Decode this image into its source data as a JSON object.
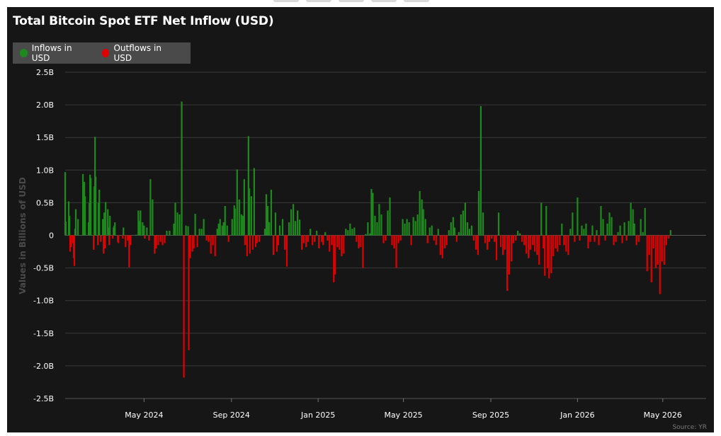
{
  "chart_data": {
    "type": "bar",
    "title": "Total Bitcoin Spot ETF Net Inflow (USD)",
    "ylabel": "Values in Billions of USD",
    "ylim": [
      -2.5,
      2.5
    ],
    "yticks": [
      2.5,
      2.0,
      1.5,
      1.0,
      0.5,
      0,
      -0.5,
      -1.0,
      -1.5,
      -2.0,
      -2.5
    ],
    "ytick_labels": [
      "2.5B",
      "2.0B",
      "1.5B",
      "1.0B",
      "0.5B",
      "0",
      "-0.5B",
      "-1.0B",
      "-1.5B",
      "-2.0B",
      "-2.5B"
    ],
    "x_range": [
      "2024-01-11",
      "2026-07-01"
    ],
    "xticks": [
      {
        "date": "2024-05-01",
        "label": "May 2024"
      },
      {
        "date": "2024-09-01",
        "label": "Sep 2024"
      },
      {
        "date": "2025-01-01",
        "label": "Jan 2025"
      },
      {
        "date": "2025-05-01",
        "label": "May 2025"
      },
      {
        "date": "2025-09-01",
        "label": "Sep 2025"
      },
      {
        "date": "2026-01-01",
        "label": "Jan 2026"
      },
      {
        "date": "2026-05-01",
        "label": "May 2026"
      }
    ],
    "grid": true,
    "legend_position": "top-left",
    "colors": {
      "inflow": "#1e8a1e",
      "outflow": "#e00000"
    },
    "series": [
      {
        "name": "Inflows in USD",
        "color": "#1e8a1e"
      },
      {
        "name": "Outflows in USD",
        "color": "#e00000"
      }
    ],
    "data": [
      [
        "2024-01-11",
        0.97
      ],
      [
        "2024-01-12",
        0.21
      ],
      [
        "2024-01-16",
        0.52
      ],
      [
        "2024-01-17",
        0.3
      ],
      [
        "2024-01-18",
        -0.25
      ],
      [
        "2024-01-19",
        -0.18
      ],
      [
        "2024-01-22",
        -0.12
      ],
      [
        "2024-01-23",
        -0.35
      ],
      [
        "2024-01-24",
        -0.47
      ],
      [
        "2024-01-25",
        0.1
      ],
      [
        "2024-01-26",
        0.4
      ],
      [
        "2024-01-29",
        0.25
      ],
      [
        "2024-02-05",
        0.94
      ],
      [
        "2024-02-06",
        0.42
      ],
      [
        "2024-02-07",
        0.82
      ],
      [
        "2024-02-08",
        0.6
      ],
      [
        "2024-02-13",
        0.2
      ],
      [
        "2024-02-14",
        0.5
      ],
      [
        "2024-02-15",
        0.93
      ],
      [
        "2024-02-16",
        0.88
      ],
      [
        "2024-02-20",
        -0.22
      ],
      [
        "2024-02-21",
        0.75
      ],
      [
        "2024-02-22",
        1.51
      ],
      [
        "2024-02-23",
        0.9
      ],
      [
        "2024-02-26",
        -0.15
      ],
      [
        "2024-02-27",
        0.5
      ],
      [
        "2024-02-28",
        0.7
      ],
      [
        "2024-03-01",
        -0.1
      ],
      [
        "2024-03-04",
        0.25
      ],
      [
        "2024-03-05",
        -0.28
      ],
      [
        "2024-03-06",
        0.35
      ],
      [
        "2024-03-07",
        -0.2
      ],
      [
        "2024-03-08",
        0.51
      ],
      [
        "2024-03-11",
        0.4
      ],
      [
        "2024-03-12",
        0.12
      ],
      [
        "2024-03-13",
        -0.15
      ],
      [
        "2024-03-14",
        0.3
      ],
      [
        "2024-03-18",
        -0.05
      ],
      [
        "2024-03-19",
        0.12
      ],
      [
        "2024-03-20",
        0.15
      ],
      [
        "2024-03-21",
        0.2
      ],
      [
        "2024-03-25",
        -0.1
      ],
      [
        "2024-03-26",
        -0.12
      ],
      [
        "2024-04-01",
        -0.05
      ],
      [
        "2024-04-02",
        0.12
      ],
      [
        "2024-04-05",
        -0.18
      ],
      [
        "2024-04-08",
        -0.08
      ],
      [
        "2024-04-10",
        -0.49
      ],
      [
        "2024-04-12",
        -0.15
      ],
      [
        "2024-04-20",
        0.01
      ],
      [
        "2024-04-23",
        0.38
      ],
      [
        "2024-04-24",
        0.22
      ],
      [
        "2024-04-26",
        0.38
      ],
      [
        "2024-04-29",
        0.2
      ],
      [
        "2024-05-01",
        0.15
      ],
      [
        "2024-05-02",
        -0.05
      ],
      [
        "2024-05-05",
        0.12
      ],
      [
        "2024-05-08",
        -0.08
      ],
      [
        "2024-05-10",
        0.86
      ],
      [
        "2024-05-13",
        0.55
      ],
      [
        "2024-05-16",
        -0.28
      ],
      [
        "2024-05-18",
        -0.2
      ],
      [
        "2024-05-21",
        -0.15
      ],
      [
        "2024-05-24",
        -0.1
      ],
      [
        "2024-05-27",
        -0.15
      ],
      [
        "2024-05-30",
        -0.12
      ],
      [
        "2024-06-02",
        0.07
      ],
      [
        "2024-06-06",
        0.07
      ],
      [
        "2024-06-12",
        0.18
      ],
      [
        "2024-06-14",
        0.5
      ],
      [
        "2024-06-17",
        0.35
      ],
      [
        "2024-06-20",
        0.32
      ],
      [
        "2024-06-23",
        2.05
      ],
      [
        "2024-06-26",
        -2.18
      ],
      [
        "2024-06-29",
        0.15
      ],
      [
        "2024-07-02",
        0.14
      ],
      [
        "2024-07-03",
        -1.76
      ],
      [
        "2024-07-05",
        -0.35
      ],
      [
        "2024-07-08",
        -0.25
      ],
      [
        "2024-07-10",
        -0.2
      ],
      [
        "2024-07-12",
        0.33
      ],
      [
        "2024-07-15",
        -0.18
      ],
      [
        "2024-07-18",
        0.1
      ],
      [
        "2024-07-21",
        0.1
      ],
      [
        "2024-07-24",
        0.25
      ],
      [
        "2024-07-28",
        -0.08
      ],
      [
        "2024-07-31",
        -0.1
      ],
      [
        "2024-08-03",
        -0.28
      ],
      [
        "2024-08-06",
        -0.15
      ],
      [
        "2024-08-09",
        -0.32
      ],
      [
        "2024-08-12",
        0.1
      ],
      [
        "2024-08-14",
        0.18
      ],
      [
        "2024-08-16",
        0.25
      ],
      [
        "2024-08-19",
        0.15
      ],
      [
        "2024-08-21",
        0.2
      ],
      [
        "2024-08-23",
        0.45
      ],
      [
        "2024-08-26",
        0.15
      ],
      [
        "2024-08-28",
        -0.1
      ],
      [
        "2024-09-02",
        0.25
      ],
      [
        "2024-09-05",
        0.46
      ],
      [
        "2024-09-06",
        0.41
      ],
      [
        "2024-09-09",
        1.01
      ],
      [
        "2024-09-12",
        0.55
      ],
      [
        "2024-09-15",
        0.32
      ],
      [
        "2024-09-17",
        0.3
      ],
      [
        "2024-09-19",
        0.86
      ],
      [
        "2024-09-20",
        -0.15
      ],
      [
        "2024-09-23",
        -0.32
      ],
      [
        "2024-09-25",
        1.52
      ],
      [
        "2024-09-26",
        0.72
      ],
      [
        "2024-09-27",
        -0.28
      ],
      [
        "2024-09-29",
        0.6
      ],
      [
        "2024-10-01",
        -0.22
      ],
      [
        "2024-10-03",
        1.03
      ],
      [
        "2024-10-05",
        -0.18
      ],
      [
        "2024-10-07",
        -0.12
      ],
      [
        "2024-10-10",
        -0.1
      ],
      [
        "2024-10-18",
        0.1
      ],
      [
        "2024-10-20",
        0.63
      ],
      [
        "2024-10-22",
        0.45
      ],
      [
        "2024-10-24",
        0.2
      ],
      [
        "2024-10-27",
        0.7
      ],
      [
        "2024-10-30",
        -0.3
      ],
      [
        "2024-11-02",
        0.35
      ],
      [
        "2024-11-04",
        -0.25
      ],
      [
        "2024-11-06",
        -0.15
      ],
      [
        "2024-11-08",
        0.15
      ],
      [
        "2024-11-12",
        0.25
      ],
      [
        "2024-11-15",
        -0.22
      ],
      [
        "2024-11-18",
        -0.48
      ],
      [
        "2024-11-21",
        0.2
      ],
      [
        "2024-11-24",
        0.4
      ],
      [
        "2024-11-27",
        0.48
      ],
      [
        "2024-11-30",
        0.22
      ],
      [
        "2024-12-03",
        0.38
      ],
      [
        "2024-12-06",
        0.24
      ],
      [
        "2024-12-09",
        -0.22
      ],
      [
        "2024-12-12",
        -0.12
      ],
      [
        "2024-12-15",
        -0.18
      ],
      [
        "2024-12-18",
        -0.1
      ],
      [
        "2024-12-21",
        0.1
      ],
      [
        "2024-12-24",
        -0.15
      ],
      [
        "2024-12-27",
        -0.1
      ],
      [
        "2024-12-30",
        0.07
      ],
      [
        "2025-01-02",
        -0.2
      ],
      [
        "2025-01-06",
        -0.1
      ],
      [
        "2025-01-08",
        -0.15
      ],
      [
        "2025-01-11",
        0.05
      ],
      [
        "2025-01-14",
        -0.08
      ],
      [
        "2025-01-17",
        -0.25
      ],
      [
        "2025-01-20",
        -0.15
      ],
      [
        "2025-01-23",
        -0.72
      ],
      [
        "2025-01-25",
        -0.6
      ],
      [
        "2025-01-28",
        -0.18
      ],
      [
        "2025-01-31",
        -0.22
      ],
      [
        "2025-02-03",
        -0.32
      ],
      [
        "2025-02-06",
        -0.28
      ],
      [
        "2025-02-09",
        0.1
      ],
      [
        "2025-02-12",
        0.08
      ],
      [
        "2025-02-15",
        0.18
      ],
      [
        "2025-02-18",
        0.1
      ],
      [
        "2025-02-21",
        0.12
      ],
      [
        "2025-02-24",
        -0.1
      ],
      [
        "2025-02-27",
        -0.2
      ],
      [
        "2025-03-02",
        -0.18
      ],
      [
        "2025-03-05",
        -0.5
      ],
      [
        "2025-03-09",
        0.02
      ],
      [
        "2025-03-12",
        0.2
      ],
      [
        "2025-03-15",
        0.03
      ],
      [
        "2025-03-17",
        0.71
      ],
      [
        "2025-03-19",
        0.65
      ],
      [
        "2025-03-22",
        0.3
      ],
      [
        "2025-03-25",
        0.2
      ],
      [
        "2025-03-28",
        0.48
      ],
      [
        "2025-03-31",
        0.32
      ],
      [
        "2025-04-03",
        -0.12
      ],
      [
        "2025-04-06",
        -0.08
      ],
      [
        "2025-04-09",
        0.38
      ],
      [
        "2025-04-12",
        0.58
      ],
      [
        "2025-04-15",
        -0.15
      ],
      [
        "2025-04-18",
        -0.2
      ],
      [
        "2025-04-21",
        -0.5
      ],
      [
        "2025-04-24",
        -0.12
      ],
      [
        "2025-04-27",
        -0.08
      ],
      [
        "2025-04-30",
        0.25
      ],
      [
        "2025-05-03",
        0.18
      ],
      [
        "2025-05-06",
        0.25
      ],
      [
        "2025-05-09",
        0.2
      ],
      [
        "2025-05-12",
        -0.15
      ],
      [
        "2025-05-15",
        0.28
      ],
      [
        "2025-05-18",
        0.22
      ],
      [
        "2025-05-21",
        0.32
      ],
      [
        "2025-05-24",
        0.68
      ],
      [
        "2025-05-27",
        0.55
      ],
      [
        "2025-05-29",
        0.4
      ],
      [
        "2025-06-01",
        0.25
      ],
      [
        "2025-06-04",
        -0.12
      ],
      [
        "2025-06-07",
        0.12
      ],
      [
        "2025-06-10",
        0.15
      ],
      [
        "2025-06-13",
        -0.08
      ],
      [
        "2025-06-16",
        -0.15
      ],
      [
        "2025-06-19",
        0.1
      ],
      [
        "2025-06-22",
        -0.3
      ],
      [
        "2025-06-25",
        -0.35
      ],
      [
        "2025-06-28",
        -0.2
      ],
      [
        "2025-07-01",
        -0.15
      ],
      [
        "2025-07-04",
        0.08
      ],
      [
        "2025-07-07",
        0.2
      ],
      [
        "2025-07-10",
        0.28
      ],
      [
        "2025-07-12",
        0.12
      ],
      [
        "2025-07-15",
        -0.1
      ],
      [
        "2025-07-18",
        0.05
      ],
      [
        "2025-07-21",
        0.32
      ],
      [
        "2025-07-24",
        0.38
      ],
      [
        "2025-07-27",
        0.5
      ],
      [
        "2025-07-30",
        0.2
      ],
      [
        "2025-08-02",
        0.1
      ],
      [
        "2025-08-05",
        0.15
      ],
      [
        "2025-08-08",
        -0.08
      ],
      [
        "2025-08-11",
        -0.22
      ],
      [
        "2025-08-14",
        -0.3
      ],
      [
        "2025-08-15",
        0.68
      ],
      [
        "2025-08-18",
        1.98
      ],
      [
        "2025-08-21",
        0.35
      ],
      [
        "2025-08-24",
        -0.12
      ],
      [
        "2025-08-27",
        -0.22
      ],
      [
        "2025-08-30",
        -0.1
      ],
      [
        "2025-09-02",
        -0.05
      ],
      [
        "2025-09-06",
        -0.1
      ],
      [
        "2025-09-09",
        -0.38
      ],
      [
        "2025-09-12",
        0.35
      ],
      [
        "2025-09-15",
        -0.18
      ],
      [
        "2025-09-18",
        -0.3
      ],
      [
        "2025-09-21",
        -0.22
      ],
      [
        "2025-09-24",
        -0.85
      ],
      [
        "2025-09-27",
        -0.6
      ],
      [
        "2025-09-30",
        -0.4
      ],
      [
        "2025-10-03",
        -0.12
      ],
      [
        "2025-10-06",
        -0.08
      ],
      [
        "2025-10-09",
        0.07
      ],
      [
        "2025-10-12",
        0.03
      ],
      [
        "2025-10-15",
        -0.1
      ],
      [
        "2025-10-18",
        -0.15
      ],
      [
        "2025-10-21",
        -0.28
      ],
      [
        "2025-10-24",
        -0.35
      ],
      [
        "2025-10-27",
        -0.22
      ],
      [
        "2025-10-30",
        -0.15
      ],
      [
        "2025-11-02",
        -0.25
      ],
      [
        "2025-11-05",
        -0.3
      ],
      [
        "2025-11-08",
        -0.45
      ],
      [
        "2025-11-11",
        0.5
      ],
      [
        "2025-11-14",
        -0.2
      ],
      [
        "2025-11-16",
        -0.62
      ],
      [
        "2025-11-18",
        0.45
      ],
      [
        "2025-11-20",
        -0.5
      ],
      [
        "2025-11-22",
        -0.66
      ],
      [
        "2025-11-25",
        -0.58
      ],
      [
        "2025-11-28",
        -0.32
      ],
      [
        "2025-12-01",
        -0.2
      ],
      [
        "2025-12-04",
        -0.25
      ],
      [
        "2025-12-07",
        -0.15
      ],
      [
        "2025-12-10",
        0.18
      ],
      [
        "2025-12-13",
        -0.15
      ],
      [
        "2025-12-16",
        -0.25
      ],
      [
        "2025-12-19",
        -0.3
      ],
      [
        "2025-12-22",
        0.1
      ],
      [
        "2025-12-25",
        0.35
      ],
      [
        "2025-12-28",
        -0.1
      ],
      [
        "2026-01-01",
        0.58
      ],
      [
        "2026-01-04",
        -0.08
      ],
      [
        "2026-01-07",
        0.15
      ],
      [
        "2026-01-10",
        0.1
      ],
      [
        "2026-01-13",
        0.18
      ],
      [
        "2026-01-16",
        -0.2
      ],
      [
        "2026-01-19",
        -0.1
      ],
      [
        "2026-01-22",
        0.15
      ],
      [
        "2026-01-25",
        -0.1
      ],
      [
        "2026-01-28",
        0.08
      ],
      [
        "2026-01-31",
        -0.15
      ],
      [
        "2026-02-03",
        0.45
      ],
      [
        "2026-02-06",
        0.25
      ],
      [
        "2026-02-09",
        -0.08
      ],
      [
        "2026-02-12",
        0.18
      ],
      [
        "2026-02-15",
        0.35
      ],
      [
        "2026-02-18",
        0.28
      ],
      [
        "2026-02-21",
        -0.15
      ],
      [
        "2026-02-24",
        -0.1
      ],
      [
        "2026-02-27",
        0.05
      ],
      [
        "2026-03-02",
        0.15
      ],
      [
        "2026-03-05",
        -0.12
      ],
      [
        "2026-03-08",
        0.2
      ],
      [
        "2026-03-11",
        -0.08
      ],
      [
        "2026-03-14",
        0.22
      ],
      [
        "2026-03-17",
        0.5
      ],
      [
        "2026-03-20",
        0.4
      ],
      [
        "2026-03-22",
        0.18
      ],
      [
        "2026-03-25",
        -0.15
      ],
      [
        "2026-03-28",
        -0.1
      ],
      [
        "2026-03-31",
        0.25
      ],
      [
        "2026-04-03",
        0.05
      ],
      [
        "2026-04-06",
        0.42
      ],
      [
        "2026-04-09",
        -0.55
      ],
      [
        "2026-04-12",
        -0.3
      ],
      [
        "2026-04-15",
        -0.72
      ],
      [
        "2026-04-18",
        -0.2
      ],
      [
        "2026-04-21",
        -0.5
      ],
      [
        "2026-04-24",
        -0.45
      ],
      [
        "2026-04-27",
        -0.9
      ],
      [
        "2026-04-30",
        -0.4
      ],
      [
        "2026-05-03",
        -0.45
      ],
      [
        "2026-05-06",
        -0.15
      ],
      [
        "2026-05-09",
        -0.05
      ],
      [
        "2026-05-12",
        0.08
      ]
    ]
  },
  "footer": {
    "source": "Source: YR"
  }
}
